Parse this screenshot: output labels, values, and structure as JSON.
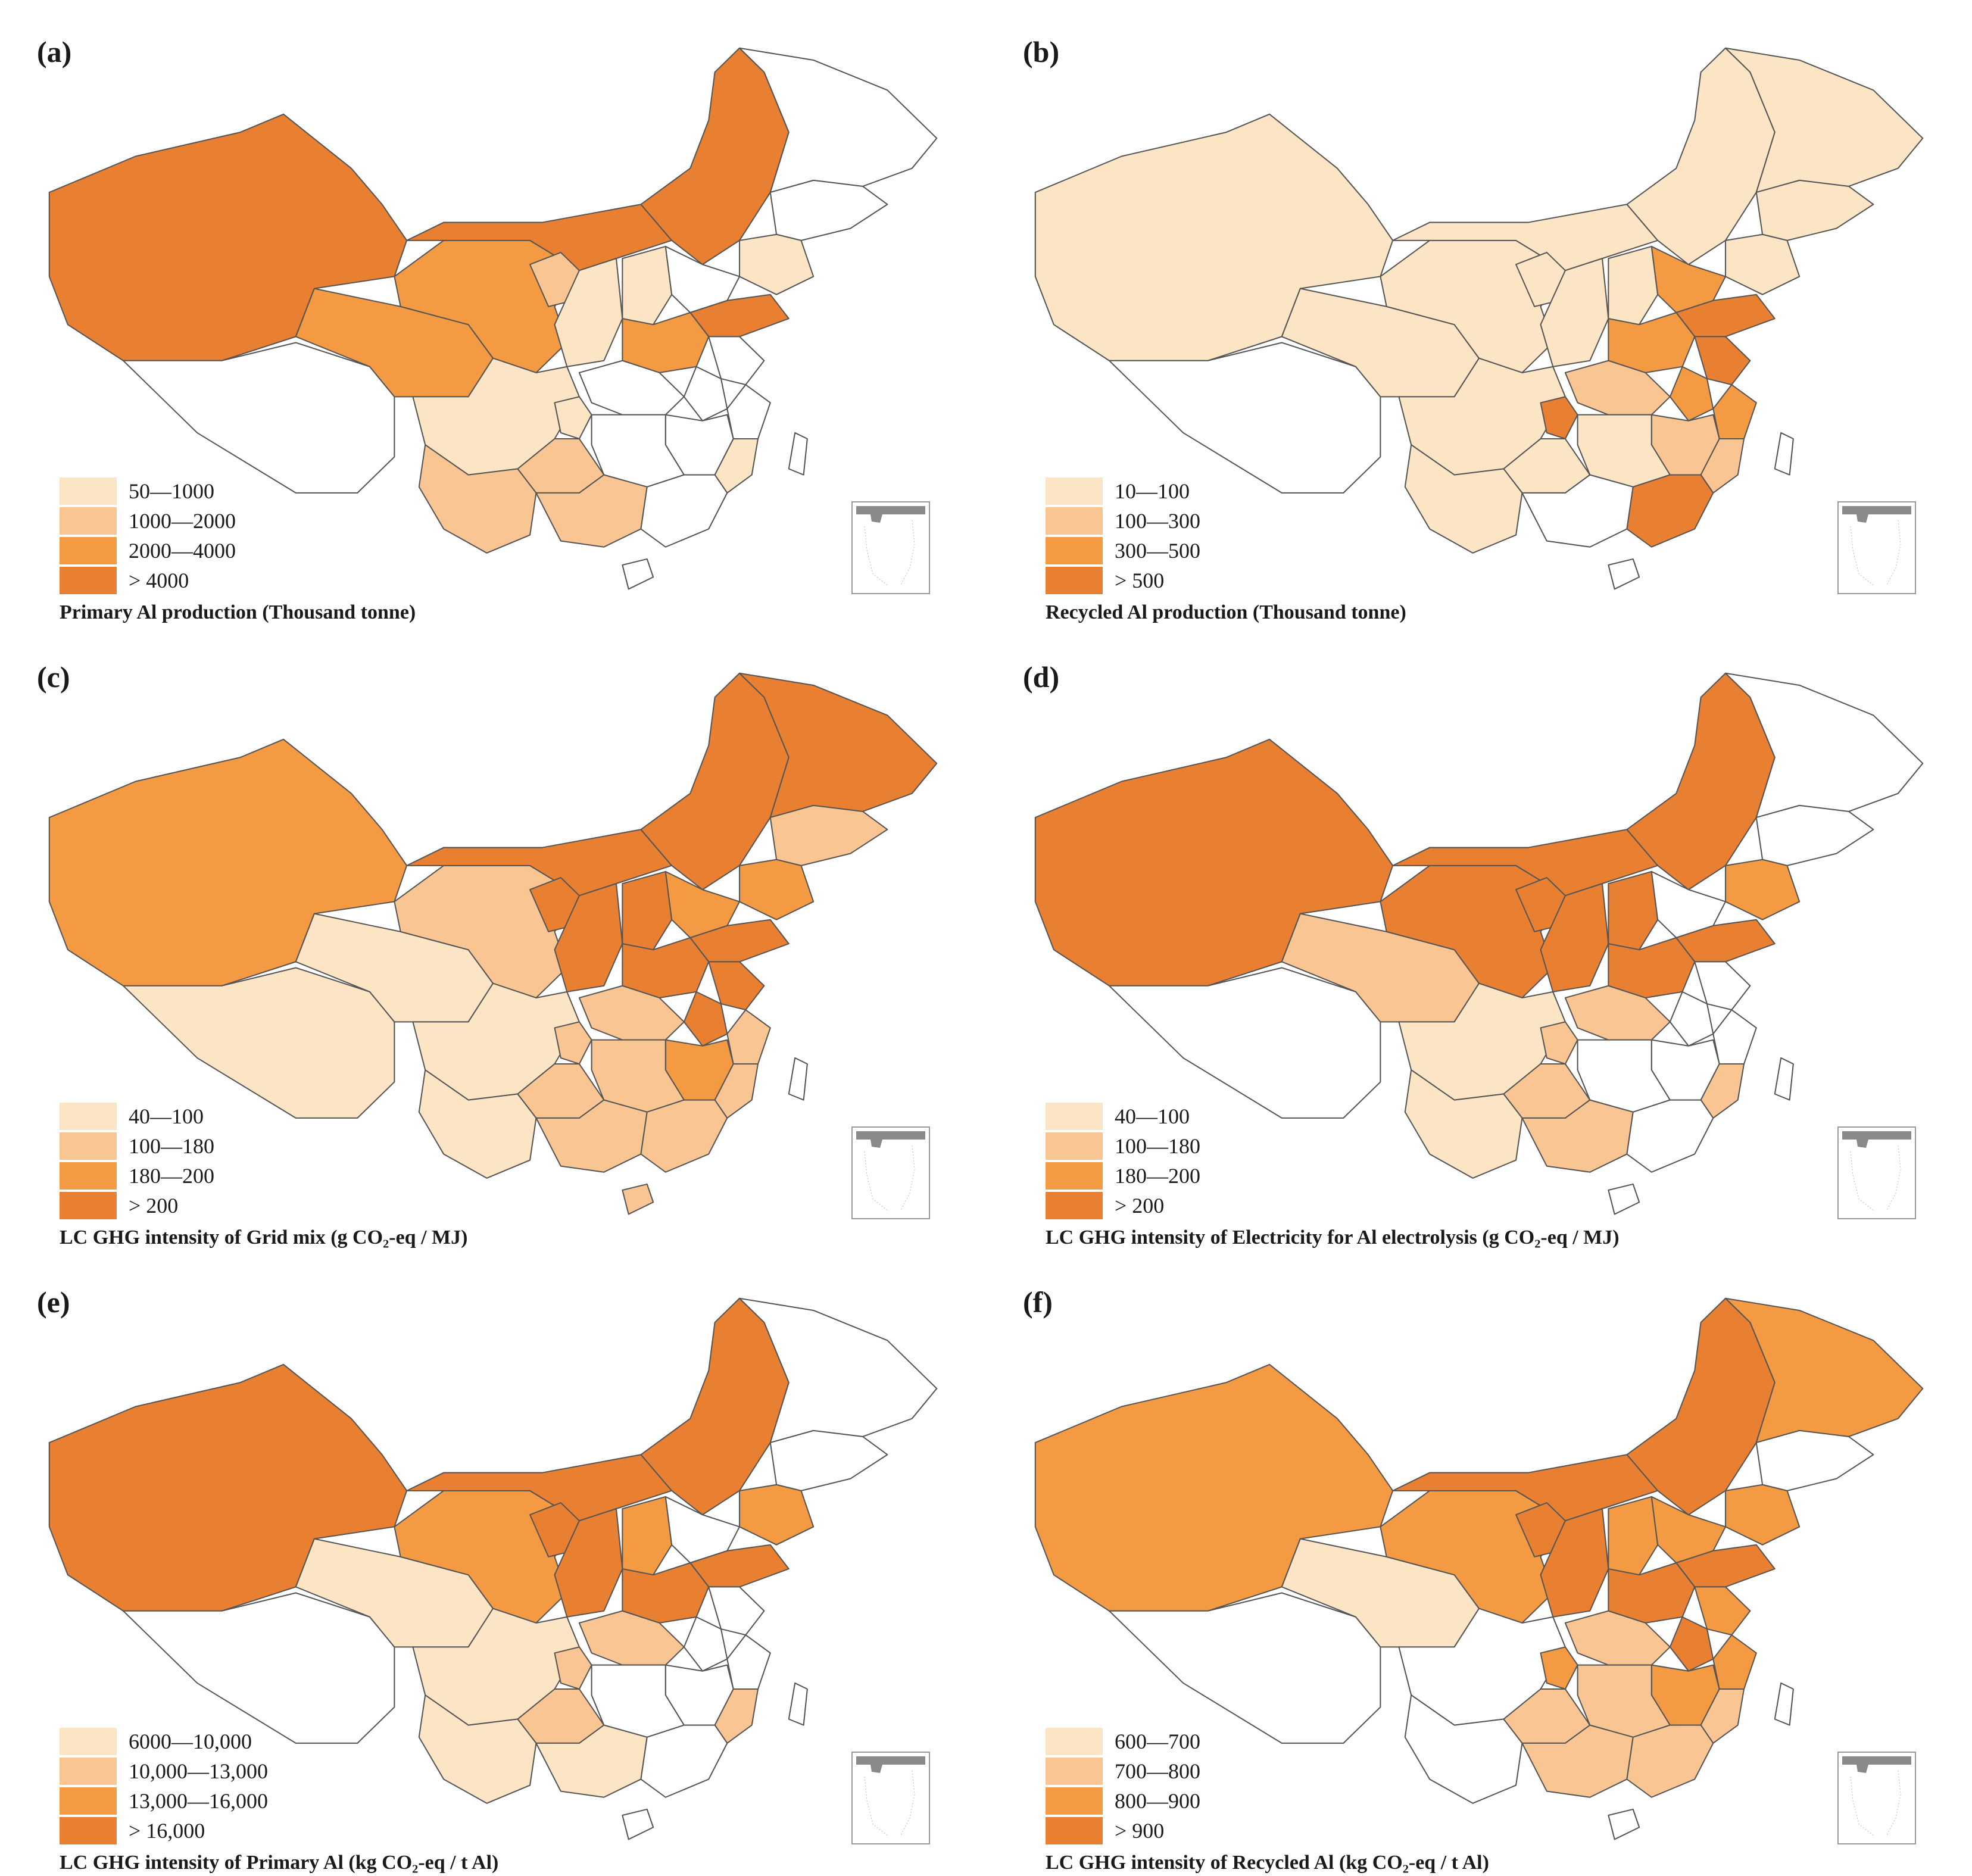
{
  "colors": {
    "class1": "#FCE5C5",
    "class2": "#F9C693",
    "class3": "#F39A43",
    "class4": "#E97F31",
    "border": "#555555",
    "nodata": "#FFFFFF"
  },
  "panels": [
    {
      "label": "(a)",
      "caption": "Primary Al production (Thousand tonne)",
      "legend": [
        "50—1000",
        "1000—2000",
        "2000—4000",
        "> 4000"
      ],
      "regions": {
        "xj": 4,
        "xz": 0,
        "qh": 3,
        "gs": 3,
        "nmw": 4,
        "nme": 4,
        "hlj": 0,
        "jl": 0,
        "ln": 1,
        "nx": 2,
        "sx": 1,
        "shx": 1,
        "sd": 4,
        "hb": 0,
        "hn": 3,
        "sc": 1,
        "cq": 1,
        "gz": 2,
        "yn": 2,
        "gx": 2,
        "hub": 0,
        "hun": 0,
        "jx": 0,
        "ah": 0,
        "js": 0,
        "zj": 0,
        "fj": 1,
        "gd": 0,
        "hi": 0,
        "tw": 0
      }
    },
    {
      "label": "(b)",
      "caption": "Recycled Al production (Thousand tonne)",
      "legend": [
        "10—100",
        "100—300",
        "300—500",
        "> 500"
      ],
      "regions": {
        "xj": 1,
        "xz": 0,
        "qh": 1,
        "gs": 1,
        "nmw": 1,
        "nme": 1,
        "hlj": 1,
        "jl": 1,
        "ln": 1,
        "nx": 1,
        "sx": 1,
        "shx": 1,
        "sd": 4,
        "hb": 3,
        "hn": 3,
        "sc": 1,
        "cq": 4,
        "gz": 1,
        "yn": 1,
        "gx": 0,
        "hub": 2,
        "hun": 1,
        "jx": 2,
        "ah": 3,
        "js": 4,
        "zj": 3,
        "fj": 2,
        "gd": 4,
        "hi": 0,
        "tw": 0
      }
    },
    {
      "label": "(c)",
      "caption": "LC GHG intensity of Grid mix (g CO₂-eq / MJ)",
      "legend": [
        "40—100",
        "100—180",
        "180—200",
        "> 200"
      ],
      "regions": {
        "xj": 3,
        "xz": 1,
        "qh": 1,
        "gs": 2,
        "nmw": 4,
        "nme": 4,
        "hlj": 4,
        "jl": 2,
        "ln": 3,
        "nx": 4,
        "sx": 4,
        "shx": 4,
        "sd": 4,
        "hb": 3,
        "hn": 4,
        "sc": 1,
        "cq": 2,
        "gz": 2,
        "yn": 1,
        "gx": 2,
        "hub": 2,
        "hun": 2,
        "jx": 3,
        "ah": 4,
        "js": 4,
        "zj": 2,
        "fj": 2,
        "gd": 2,
        "hi": 2,
        "tw": 0
      }
    },
    {
      "label": "(d)",
      "caption": "LC GHG intensity of Electricity for Al electrolysis (g CO₂-eq / MJ)",
      "legend": [
        "40—100",
        "100—180",
        "180—200",
        "> 200"
      ],
      "regions": {
        "xj": 4,
        "xz": 0,
        "qh": 2,
        "gs": 4,
        "nmw": 4,
        "nme": 4,
        "hlj": 0,
        "jl": 0,
        "ln": 3,
        "nx": 4,
        "sx": 4,
        "shx": 4,
        "sd": 4,
        "hb": 0,
        "hn": 4,
        "sc": 1,
        "cq": 2,
        "gz": 2,
        "yn": 1,
        "gx": 2,
        "hub": 2,
        "hun": 0,
        "jx": 0,
        "ah": 0,
        "js": 0,
        "zj": 0,
        "fj": 2,
        "gd": 0,
        "hi": 0,
        "tw": 0
      }
    },
    {
      "label": "(e)",
      "caption": "LC GHG intensity of Primary Al (kg CO₂-eq / t Al)",
      "legend": [
        "6000—10,000",
        "10,000—13,000",
        "13,000—16,000",
        "> 16,000"
      ],
      "regions": {
        "xj": 4,
        "xz": 0,
        "qh": 1,
        "gs": 3,
        "nmw": 4,
        "nme": 4,
        "hlj": 0,
        "jl": 0,
        "ln": 3,
        "nx": 4,
        "sx": 3,
        "shx": 4,
        "sd": 4,
        "hb": 0,
        "hn": 4,
        "sc": 1,
        "cq": 2,
        "gz": 2,
        "yn": 1,
        "gx": 1,
        "hub": 2,
        "hun": 0,
        "jx": 0,
        "ah": 0,
        "js": 0,
        "zj": 0,
        "fj": 2,
        "gd": 0,
        "hi": 0,
        "tw": 0
      }
    },
    {
      "label": "(f)",
      "caption": "LC GHG intensity of Recycled Al (kg CO₂-eq / t Al)",
      "legend": [
        "600—700",
        "700—800",
        "800—900",
        "> 900"
      ],
      "regions": {
        "xj": 3,
        "xz": 0,
        "qh": 1,
        "gs": 3,
        "nmw": 4,
        "nme": 4,
        "hlj": 3,
        "jl": 0,
        "ln": 3,
        "nx": 4,
        "sx": 3,
        "shx": 4,
        "sd": 4,
        "hb": 3,
        "hn": 4,
        "sc": 0,
        "cq": 3,
        "gz": 2,
        "yn": 0,
        "gx": 2,
        "hub": 2,
        "hun": 2,
        "jx": 3,
        "ah": 4,
        "js": 3,
        "zj": 3,
        "fj": 2,
        "gd": 2,
        "hi": 0,
        "tw": 0
      }
    }
  ]
}
